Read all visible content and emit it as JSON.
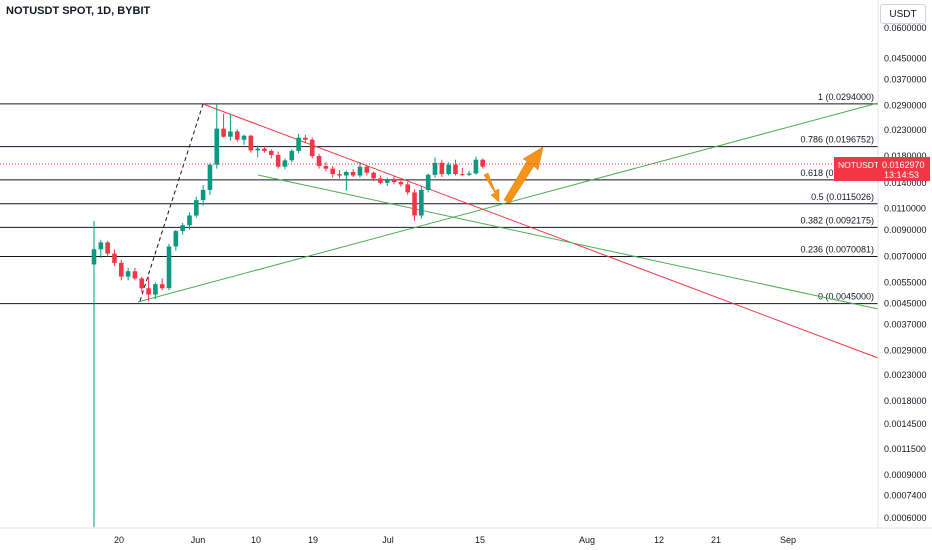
{
  "header": {
    "title": "NOTUSDT SPOT, 1D, BYBIT",
    "currency": "USDT"
  },
  "price_label": {
    "symbol": "NOTUSDT",
    "price": "0.0162970",
    "countdown": "13:14:53",
    "color": "#f23645"
  },
  "colors": {
    "up": "#089981",
    "down": "#f23645",
    "trend_red": "#f23645",
    "trend_green": "#4caf50",
    "arrow": "#f7931a",
    "fib_line": "#131722"
  },
  "chart_data": {
    "type": "candlestick",
    "scale": "log",
    "yticks": [
      "0.0600000",
      "0.0450000",
      "0.0370000",
      "0.0290000",
      "0.0230000",
      "0.0180000",
      "0.0140000",
      "0.0110000",
      "0.0090000",
      "0.0070000",
      "0.0055000",
      "0.0045000",
      "0.0037000",
      "0.0029000",
      "0.0023000",
      "0.0018000",
      "0.0014500",
      "0.0011500",
      "0.0009000",
      "0.0007400",
      "0.0006000"
    ],
    "xticks": [
      "20",
      "Jun",
      "10",
      "19",
      "Jul",
      "15",
      "Aug",
      "12",
      "21",
      "Sep"
    ],
    "fib_levels": [
      {
        "label": "1 (0.0294000)",
        "value": 0.0294
      },
      {
        "label": "0.786 (0.0196752)",
        "value": 0.0196752
      },
      {
        "label": "0.618 (0.0143943)",
        "value": 0.0143943
      },
      {
        "label": "0.5 (0.0115026)",
        "value": 0.0115026
      },
      {
        "label": "0.382 (0.0092175)",
        "value": 0.0092175
      },
      {
        "label": "0.236 (0.0070081)",
        "value": 0.0070081
      },
      {
        "label": "0 (0.0045000)",
        "value": 0.0045
      }
    ],
    "candles": [
      [
        0.0065,
        0.0098,
        0.00055,
        0.0075
      ],
      [
        0.0075,
        0.0082,
        0.0069,
        0.008
      ],
      [
        0.008,
        0.0081,
        0.007,
        0.0072
      ],
      [
        0.0072,
        0.0075,
        0.0064,
        0.0066
      ],
      [
        0.0066,
        0.0068,
        0.0056,
        0.0058
      ],
      [
        0.0058,
        0.0063,
        0.0056,
        0.0061
      ],
      [
        0.0061,
        0.0063,
        0.0056,
        0.0057
      ],
      [
        0.0057,
        0.0058,
        0.005,
        0.0052
      ],
      [
        0.0052,
        0.0058,
        0.0046,
        0.0049
      ],
      [
        0.0049,
        0.0055,
        0.0047,
        0.0054
      ],
      [
        0.0054,
        0.0057,
        0.0051,
        0.0052
      ],
      [
        0.0052,
        0.0079,
        0.0051,
        0.0077
      ],
      [
        0.0077,
        0.009,
        0.0074,
        0.0089
      ],
      [
        0.0089,
        0.0096,
        0.0086,
        0.0094
      ],
      [
        0.0094,
        0.0106,
        0.009,
        0.0103
      ],
      [
        0.0103,
        0.0123,
        0.0101,
        0.0119
      ],
      [
        0.0119,
        0.0137,
        0.0113,
        0.0131
      ],
      [
        0.0131,
        0.0168,
        0.0125,
        0.0166
      ],
      [
        0.0166,
        0.0294,
        0.016,
        0.0233
      ],
      [
        0.0233,
        0.0268,
        0.0214,
        0.0216
      ],
      [
        0.0216,
        0.0265,
        0.0208,
        0.0227
      ],
      [
        0.0227,
        0.0232,
        0.0206,
        0.021
      ],
      [
        0.021,
        0.022,
        0.02,
        0.0218
      ],
      [
        0.0218,
        0.022,
        0.0186,
        0.019
      ],
      [
        0.019,
        0.0199,
        0.0178,
        0.0193
      ],
      [
        0.0193,
        0.0197,
        0.0186,
        0.0189
      ],
      [
        0.0189,
        0.0192,
        0.0176,
        0.0182
      ],
      [
        0.0182,
        0.0188,
        0.016,
        0.0163
      ],
      [
        0.0163,
        0.0176,
        0.0159,
        0.0173
      ],
      [
        0.0173,
        0.0192,
        0.017,
        0.0189
      ],
      [
        0.0189,
        0.0222,
        0.0185,
        0.0214
      ],
      [
        0.0214,
        0.022,
        0.0205,
        0.021
      ],
      [
        0.021,
        0.0214,
        0.0176,
        0.018
      ],
      [
        0.018,
        0.0184,
        0.016,
        0.0164
      ],
      [
        0.0164,
        0.017,
        0.0156,
        0.016
      ],
      [
        0.016,
        0.0164,
        0.0147,
        0.0152
      ],
      [
        0.0152,
        0.0158,
        0.0146,
        0.015
      ],
      [
        0.015,
        0.0157,
        0.013,
        0.0155
      ],
      [
        0.0155,
        0.0159,
        0.0148,
        0.015
      ],
      [
        0.015,
        0.017,
        0.0147,
        0.0163
      ],
      [
        0.0163,
        0.0165,
        0.015,
        0.0154
      ],
      [
        0.0154,
        0.0156,
        0.0142,
        0.0146
      ],
      [
        0.0146,
        0.015,
        0.0138,
        0.014
      ],
      [
        0.014,
        0.0147,
        0.0136,
        0.0145
      ],
      [
        0.0145,
        0.015,
        0.0138,
        0.0141
      ],
      [
        0.0141,
        0.0145,
        0.0135,
        0.0138
      ],
      [
        0.0138,
        0.0141,
        0.0125,
        0.0128
      ],
      [
        0.0128,
        0.0132,
        0.0098,
        0.0103
      ],
      [
        0.0103,
        0.0135,
        0.01,
        0.0131
      ],
      [
        0.0131,
        0.0153,
        0.0128,
        0.0151
      ],
      [
        0.0151,
        0.0178,
        0.0147,
        0.0169
      ],
      [
        0.0169,
        0.0174,
        0.0148,
        0.0152
      ],
      [
        0.0152,
        0.017,
        0.015,
        0.0166
      ],
      [
        0.0166,
        0.0174,
        0.015,
        0.0152
      ],
      [
        0.0152,
        0.0161,
        0.0149,
        0.0151
      ],
      [
        0.0151,
        0.0157,
        0.0149,
        0.0153
      ],
      [
        0.0153,
        0.0179,
        0.0151,
        0.0174
      ],
      [
        0.0174,
        0.0176,
        0.016,
        0.0163
      ]
    ]
  }
}
